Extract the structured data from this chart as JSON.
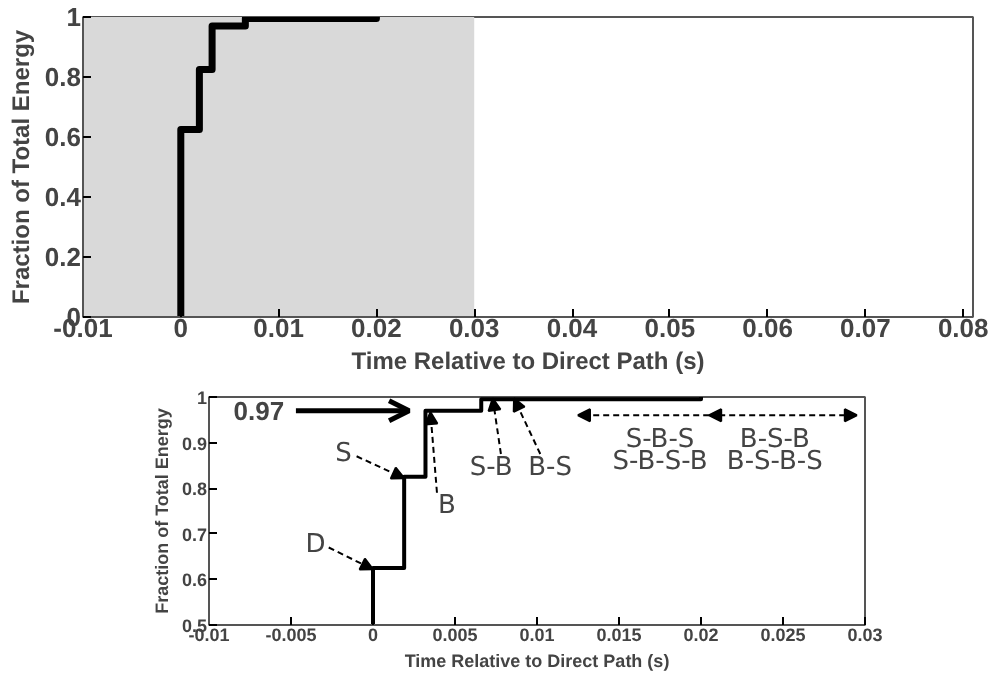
{
  "chart_data": [
    {
      "type": "step",
      "xlabel": "Time Relative to Direct Path (s)",
      "ylabel": "Fraction of Total Energy",
      "xlim": [
        -0.01,
        0.081
      ],
      "ylim": [
        0,
        1
      ],
      "xticks": [
        -0.01,
        0,
        0.01,
        0.02,
        0.03,
        0.04,
        0.05,
        0.06,
        0.07,
        0.08
      ],
      "yticks": [
        0,
        0.2,
        0.4,
        0.6,
        0.8,
        1
      ],
      "grid": false,
      "bands": [
        {
          "axis": "x",
          "from": -0.01,
          "to": 0.03,
          "color": "#d9d9d9"
        }
      ],
      "series": [
        {
          "color": "#000000",
          "x": [
            0,
            0,
            0.0019,
            0.0032,
            0.0066,
            0.02
          ],
          "values": [
            0,
            0.625,
            0.825,
            0.97,
            0.995,
            1
          ]
        }
      ]
    },
    {
      "type": "step",
      "xlabel": "Time Relative to Direct Path (s)",
      "ylabel": "Fraction of Total Energy",
      "xlim": [
        -0.01,
        0.03
      ],
      "ylim": [
        0.5,
        1
      ],
      "xticks": [
        -0.01,
        -0.005,
        0,
        0.005,
        0.01,
        0.015,
        0.02,
        0.025,
        0.03
      ],
      "yticks": [
        0.5,
        0.6,
        0.7,
        0.8,
        0.9,
        1
      ],
      "grid": false,
      "series": [
        {
          "color": "#000000",
          "x": [
            0,
            0,
            0.0019,
            0.0032,
            0.0066,
            0.02
          ],
          "values": [
            0.5,
            0.625,
            0.825,
            0.97,
            0.995,
            1
          ]
        }
      ],
      "annotations": [
        "0.97",
        {
          "text": "S",
          "x": 0.0019,
          "y": 0.825
        },
        {
          "text": "D",
          "x": 0,
          "y": 0.625
        },
        {
          "text": "B",
          "x": 0.0035,
          "y": 0.97
        },
        {
          "text": "S-B",
          "x": 0.0073,
          "y": 1
        },
        {
          "text": "B-S",
          "x": 0.0086,
          "y": 1
        },
        "S-B-S",
        "B-S-B",
        "S-B-S-B",
        "B-S-B-S"
      ]
    }
  ]
}
